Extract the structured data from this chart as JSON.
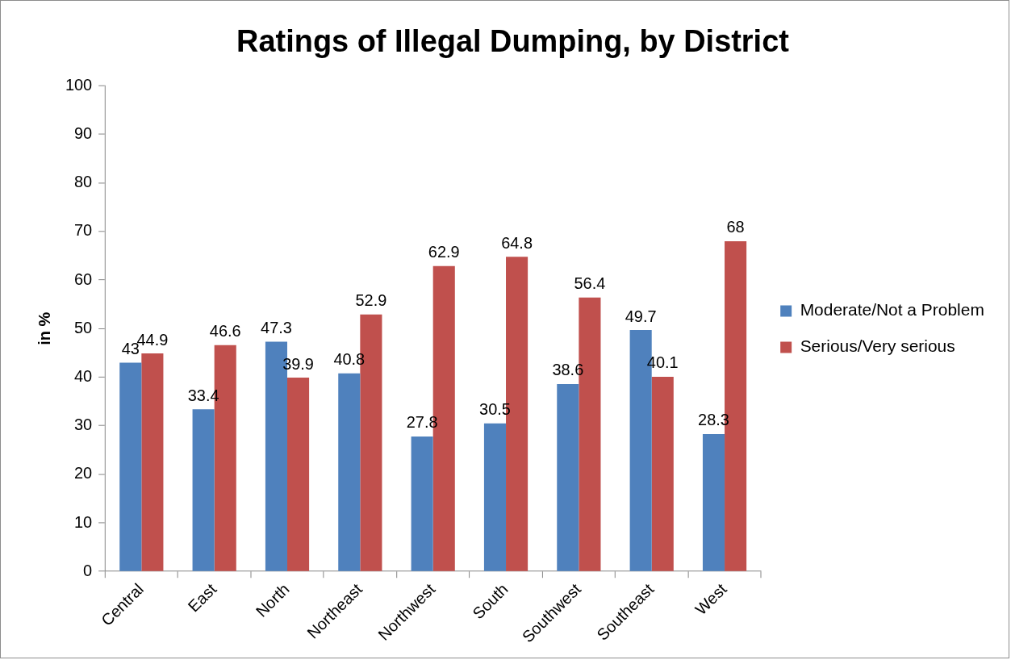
{
  "chart_data": {
    "type": "bar",
    "title": "Ratings of Illegal Dumping, by District",
    "ylabel": "in %",
    "categories": [
      "Central",
      "East",
      "North",
      "Northeast",
      "Northwest",
      "South",
      "Southwest",
      "Southeast",
      "West"
    ],
    "series": [
      {
        "name": "Moderate/Not a Problem",
        "color": "#4f81bd",
        "values": [
          43,
          33.4,
          47.3,
          40.8,
          27.8,
          30.5,
          38.6,
          49.7,
          28.3
        ]
      },
      {
        "name": "Serious/Very serious",
        "color": "#c0504d",
        "values": [
          44.9,
          46.6,
          39.9,
          52.9,
          62.9,
          64.8,
          56.4,
          40.1,
          68
        ]
      }
    ],
    "ylim": [
      0,
      100
    ],
    "yticks": [
      0,
      10,
      20,
      30,
      40,
      50,
      60,
      70,
      80,
      90,
      100
    ],
    "grid": false,
    "legend": "right",
    "data_labels": true
  }
}
